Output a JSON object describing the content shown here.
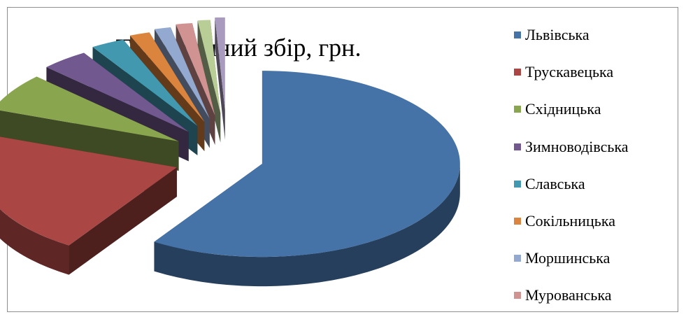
{
  "chart_data": {
    "type": "pie",
    "title": "Туристичний збір, грн.",
    "legend_position": "right",
    "slices": [
      {
        "name": "Львівська",
        "value": 58.0,
        "color": "#4572A7"
      },
      {
        "name": "Трускавецька",
        "value": 21.0,
        "color": "#AA4643"
      },
      {
        "name": "Східницька",
        "value": 6.5,
        "color": "#89A54E"
      },
      {
        "name": "Зимноводівська",
        "value": 3.8,
        "color": "#71588F"
      },
      {
        "name": "Славська",
        "value": 2.7,
        "color": "#4198AF"
      },
      {
        "name": "Сокільницька",
        "value": 1.6,
        "color": "#DB843D"
      },
      {
        "name": "Моршинська",
        "value": 1.3,
        "color": "#93A9CF"
      },
      {
        "name": "Мурованська",
        "value": 1.3,
        "color": "#D19392"
      },
      {
        "name": "",
        "value": 1.0,
        "color": "#B9CD96"
      },
      {
        "name": "",
        "value": 0.8,
        "color": "#A99BBD"
      }
    ]
  }
}
